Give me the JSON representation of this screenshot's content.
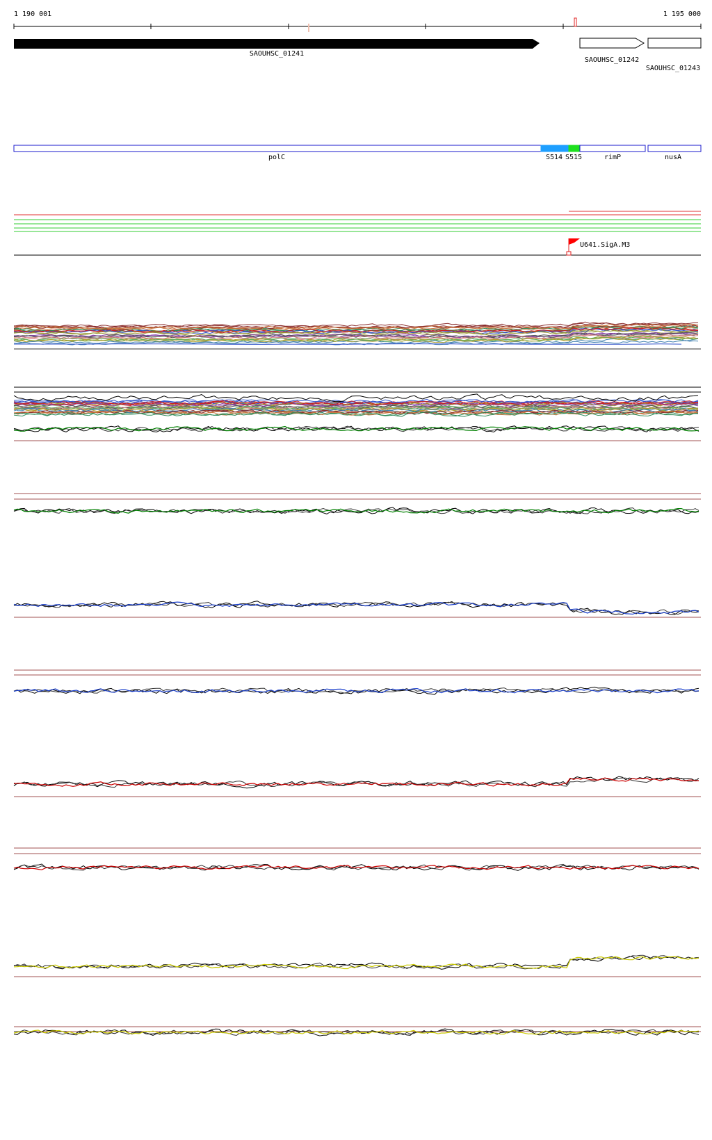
{
  "ruler": {
    "start_label": "1 190 001",
    "end_label": "1 195 000"
  },
  "genes": [
    {
      "locus": "SAOUHSC_01241",
      "strand": "+",
      "style": "filled"
    },
    {
      "locus": "SAOUHSC_01242",
      "strand": "+",
      "style": "outline"
    },
    {
      "locus": "SAOUHSC_01243",
      "strand": "+",
      "style": "outline"
    }
  ],
  "segments": [
    {
      "name": "polC",
      "color": "#1a1acc"
    },
    {
      "name": "S514",
      "color": "#1e9fff"
    },
    {
      "name": "S515",
      "color": "#1ee01e"
    },
    {
      "name": "rimP",
      "color": "#1a1acc"
    },
    {
      "name": "nusA",
      "color": "#1a1acc"
    }
  ],
  "promoter": {
    "label": "U641.SigA.M3",
    "color": "#ff0000"
  },
  "tracks": {
    "multi_colors": [
      "#8b2c2c",
      "#c9753c",
      "#2e8b57",
      "#3355cc",
      "#cc2222",
      "#999933",
      "#8844aa",
      "#555555",
      "#d08080",
      "#60b060",
      "#b0a030",
      "#4080b0"
    ],
    "profile_colors": [
      "#008000",
      "#008000",
      "#1a3fcc",
      "#1a3fcc",
      "#cc0000",
      "#cc0000",
      "#cccc00",
      "#cccc00"
    ],
    "baseline_color": "#a05050"
  }
}
